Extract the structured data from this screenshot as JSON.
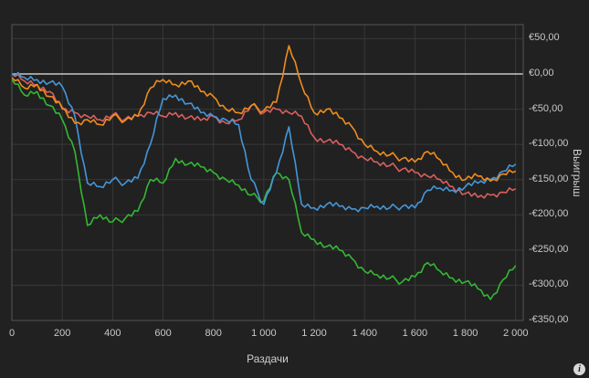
{
  "colors": {
    "background": "#212121",
    "grid": "#383838",
    "plot_border": "#555555",
    "zero_line": "#c8c8c8",
    "text": "#c8c8c8"
  },
  "icons": {
    "info": "i"
  },
  "chart_data": {
    "type": "line",
    "title": "",
    "xlabel": "Раздачи",
    "ylabel": "Выигрыш",
    "xlim": [
      0,
      2030
    ],
    "ylim": [
      -350,
      70
    ],
    "grid": true,
    "legend": "none",
    "zero_line": true,
    "x_ticks": [
      0,
      200,
      400,
      600,
      800,
      1000,
      1200,
      1400,
      1600,
      1800,
      2000
    ],
    "x_tick_labels": [
      "0",
      "200",
      "400",
      "600",
      "800",
      "1 000",
      "1 200",
      "1 400",
      "1 600",
      "1 800",
      "2 000"
    ],
    "y_ticks": [
      50,
      0,
      -50,
      -100,
      -150,
      -200,
      -250,
      -300,
      -350
    ],
    "y_tick_labels": [
      "€50,00",
      "€0,00",
      "-€50,00",
      "-€100,00",
      "-€150,00",
      "-€200,00",
      "-€250,00",
      "-€300,00",
      "-€350,00"
    ],
    "x": [
      0,
      50,
      100,
      150,
      200,
      250,
      300,
      350,
      400,
      450,
      500,
      550,
      600,
      650,
      700,
      750,
      800,
      850,
      900,
      950,
      1000,
      1050,
      1100,
      1150,
      1200,
      1250,
      1300,
      1350,
      1400,
      1450,
      1500,
      1550,
      1600,
      1650,
      1700,
      1750,
      1800,
      1850,
      1900,
      1950,
      2000
    ],
    "series": [
      {
        "name": "series-blue",
        "color": "#4596d8",
        "values": [
          0,
          -5,
          -8,
          -12,
          -18,
          -60,
          -155,
          -160,
          -150,
          -155,
          -148,
          -100,
          -35,
          -30,
          -42,
          -55,
          -60,
          -65,
          -72,
          -150,
          -185,
          -140,
          -75,
          -185,
          -190,
          -185,
          -188,
          -192,
          -190,
          -188,
          -190,
          -188,
          -190,
          -165,
          -162,
          -165,
          -160,
          -155,
          -150,
          -138,
          -128
        ]
      },
      {
        "name": "series-green",
        "color": "#33b833",
        "values": [
          -8,
          -30,
          -25,
          -45,
          -65,
          -110,
          -215,
          -200,
          -210,
          -205,
          -195,
          -150,
          -155,
          -120,
          -128,
          -132,
          -140,
          -150,
          -158,
          -172,
          -180,
          -140,
          -150,
          -225,
          -235,
          -245,
          -250,
          -262,
          -280,
          -285,
          -290,
          -295,
          -288,
          -268,
          -280,
          -290,
          -295,
          -305,
          -320,
          -292,
          -272
        ]
      },
      {
        "name": "series-orange",
        "color": "#f08c1e",
        "values": [
          -5,
          -20,
          -15,
          -32,
          -48,
          -70,
          -65,
          -72,
          -60,
          -66,
          -60,
          -20,
          -8,
          -15,
          -10,
          -25,
          -32,
          -50,
          -55,
          -45,
          -52,
          -40,
          40,
          -15,
          -55,
          -50,
          -62,
          -75,
          -100,
          -110,
          -115,
          -120,
          -125,
          -110,
          -122,
          -140,
          -150,
          -145,
          -152,
          -142,
          -138
        ]
      },
      {
        "name": "series-red",
        "color": "#d95f5f",
        "values": [
          0,
          -10,
          -15,
          -25,
          -50,
          -55,
          -60,
          -65,
          -58,
          -64,
          -60,
          -55,
          -60,
          -55,
          -62,
          -66,
          -60,
          -70,
          -65,
          -45,
          -55,
          -50,
          -55,
          -60,
          -90,
          -95,
          -100,
          -110,
          -120,
          -125,
          -130,
          -135,
          -140,
          -145,
          -150,
          -160,
          -170,
          -175,
          -172,
          -168,
          -163
        ]
      }
    ]
  }
}
